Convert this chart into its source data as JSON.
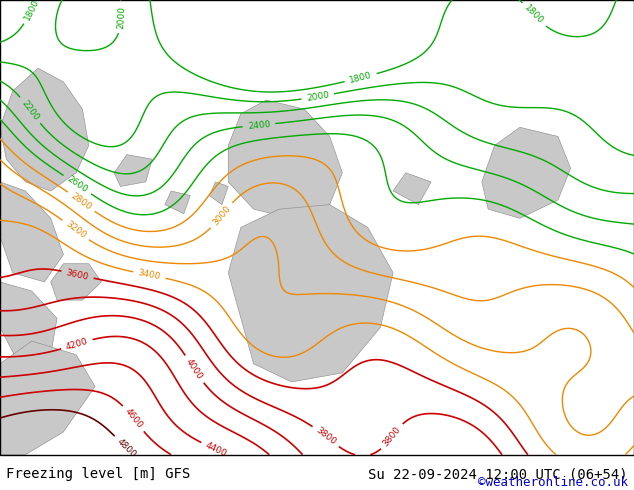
{
  "title_left": "Freezing level [m] GFS",
  "title_right": "Su 22-09-2024 12:00 UTC (06+54)",
  "credit": "©weatheronline.co.uk",
  "background_color": "#ccff99",
  "bottom_bar_color": "#ffffff",
  "bottom_text_color": "#000000",
  "credit_color": "#0000cc",
  "title_fontsize": 10,
  "credit_fontsize": 9,
  "figsize": [
    6.34,
    4.9
  ],
  "dpi": 100,
  "land_color": "#ccff99",
  "mountain_color": "#c8c8c8",
  "contour_green_color": "#00aa00",
  "contour_orange_color": "#ee8800",
  "contour_red_color": "#cc0000",
  "contour_darkred_color": "#660000",
  "contour_green_levels": [
    1800,
    2000,
    2200,
    2400,
    2600
  ],
  "contour_orange_levels": [
    2800,
    3000,
    3200,
    3400
  ],
  "contour_red_levels": [
    3600,
    3800,
    4000,
    4200,
    4400,
    4600
  ],
  "contour_darkred_levels": [
    4800
  ]
}
